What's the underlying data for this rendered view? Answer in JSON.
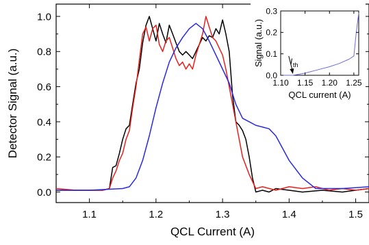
{
  "chart_data": [
    {
      "type": "line",
      "xlabel": "QCL Current (A)",
      "ylabel": "Detector Signal (a.u.)",
      "xlim": [
        1.05,
        1.52
      ],
      "ylim": [
        -0.06,
        1.07
      ],
      "xticks": [
        1.1,
        1.2,
        1.3,
        1.4,
        1.5
      ],
      "xtick_labels": [
        "1.1",
        "1.2",
        "1.3",
        "1.4",
        "1.5"
      ],
      "yticks": [
        0.0,
        0.2,
        0.4,
        0.6,
        0.8,
        1.0
      ],
      "ytick_labels": [
        "0.0",
        "0.2",
        "0.4",
        "0.6",
        "0.8",
        "1.0"
      ],
      "grid": false,
      "series": [
        {
          "color": "#000000",
          "x": [
            1.05,
            1.08,
            1.1,
            1.12,
            1.13,
            1.135,
            1.14,
            1.145,
            1.15,
            1.155,
            1.16,
            1.165,
            1.17,
            1.175,
            1.18,
            1.185,
            1.19,
            1.195,
            1.2,
            1.205,
            1.21,
            1.215,
            1.22,
            1.225,
            1.23,
            1.235,
            1.24,
            1.245,
            1.25,
            1.255,
            1.26,
            1.265,
            1.27,
            1.275,
            1.28,
            1.285,
            1.29,
            1.295,
            1.3,
            1.305,
            1.31,
            1.315,
            1.32,
            1.325,
            1.33,
            1.335,
            1.34,
            1.345,
            1.35,
            1.36,
            1.37,
            1.38,
            1.4,
            1.42,
            1.45,
            1.48,
            1.5,
            1.52
          ],
          "y": [
            0.01,
            0.01,
            0.01,
            0.01,
            0.02,
            0.14,
            0.15,
            0.22,
            0.3,
            0.36,
            0.38,
            0.5,
            0.62,
            0.7,
            0.85,
            0.95,
            1.0,
            0.93,
            0.86,
            0.96,
            0.9,
            0.85,
            0.95,
            0.9,
            0.85,
            0.8,
            0.78,
            0.8,
            0.78,
            0.76,
            0.8,
            0.84,
            0.88,
            0.86,
            0.89,
            0.88,
            0.93,
            0.9,
            0.98,
            0.9,
            0.8,
            0.55,
            0.4,
            0.38,
            0.35,
            0.3,
            0.2,
            0.08,
            0.0,
            0.01,
            0.0,
            0.02,
            0.01,
            0.0,
            0.01,
            0.0,
            0.01,
            0.02
          ]
        },
        {
          "color": "#e8201c",
          "x": [
            1.05,
            1.08,
            1.1,
            1.12,
            1.13,
            1.135,
            1.14,
            1.145,
            1.15,
            1.155,
            1.16,
            1.165,
            1.17,
            1.175,
            1.18,
            1.185,
            1.19,
            1.195,
            1.2,
            1.205,
            1.21,
            1.215,
            1.22,
            1.225,
            1.23,
            1.235,
            1.24,
            1.245,
            1.25,
            1.255,
            1.26,
            1.265,
            1.27,
            1.275,
            1.28,
            1.285,
            1.29,
            1.295,
            1.3,
            1.305,
            1.31,
            1.315,
            1.32,
            1.325,
            1.33,
            1.34,
            1.35,
            1.36,
            1.38,
            1.4,
            1.42,
            1.44,
            1.46,
            1.48,
            1.5,
            1.52
          ],
          "y": [
            0.02,
            0.01,
            0.01,
            0.01,
            0.02,
            0.08,
            0.12,
            0.18,
            0.22,
            0.3,
            0.35,
            0.48,
            0.6,
            0.75,
            0.9,
            0.94,
            0.86,
            0.93,
            0.95,
            0.84,
            0.8,
            0.86,
            0.88,
            0.82,
            0.76,
            0.72,
            0.74,
            0.7,
            0.73,
            0.7,
            0.78,
            0.84,
            0.9,
            1.0,
            0.94,
            0.88,
            0.86,
            0.82,
            0.78,
            0.7,
            0.6,
            0.5,
            0.4,
            0.3,
            0.2,
            0.1,
            0.02,
            0.03,
            0.01,
            0.03,
            0.02,
            0.03,
            0.01,
            0.02,
            0.01,
            0.02
          ]
        },
        {
          "color": "#2828e0",
          "x": [
            1.05,
            1.1,
            1.15,
            1.16,
            1.17,
            1.18,
            1.19,
            1.2,
            1.21,
            1.22,
            1.23,
            1.24,
            1.25,
            1.26,
            1.27,
            1.28,
            1.29,
            1.3,
            1.31,
            1.32,
            1.33,
            1.34,
            1.35,
            1.36,
            1.37,
            1.38,
            1.39,
            1.4,
            1.42,
            1.44,
            1.48,
            1.52
          ],
          "y": [
            0.01,
            0.01,
            0.02,
            0.03,
            0.08,
            0.18,
            0.32,
            0.48,
            0.62,
            0.74,
            0.82,
            0.88,
            0.93,
            0.96,
            0.93,
            0.86,
            0.78,
            0.7,
            0.62,
            0.5,
            0.42,
            0.4,
            0.38,
            0.37,
            0.36,
            0.32,
            0.25,
            0.18,
            0.08,
            0.02,
            0.02,
            0.03
          ]
        }
      ]
    },
    {
      "type": "line",
      "xlabel": "QCL current (A)",
      "ylabel": "Signal (a.u.)",
      "xlim": [
        1.1,
        1.26
      ],
      "ylim": [
        0.0,
        0.3
      ],
      "xticks": [
        1.1,
        1.15,
        1.2,
        1.25
      ],
      "xtick_labels": [
        "1.10",
        "1.15",
        "1.20",
        "1.25"
      ],
      "yticks": [
        0.0,
        0.1,
        0.2,
        0.3
      ],
      "ytick_labels": [
        "0.0",
        "0.1",
        "0.2",
        "0.3"
      ],
      "annotation": {
        "text": "I",
        "subscript": "th",
        "x": 1.125,
        "y": 0.0
      },
      "series": [
        {
          "color": "#6b6bdf",
          "x": [
            1.1,
            1.115,
            1.125,
            1.13,
            1.15,
            1.175,
            1.2,
            1.22,
            1.24,
            1.25,
            1.255,
            1.26
          ],
          "y": [
            0.0,
            0.0,
            0.0,
            0.002,
            0.01,
            0.025,
            0.04,
            0.055,
            0.075,
            0.09,
            0.2,
            0.29
          ]
        }
      ]
    }
  ]
}
